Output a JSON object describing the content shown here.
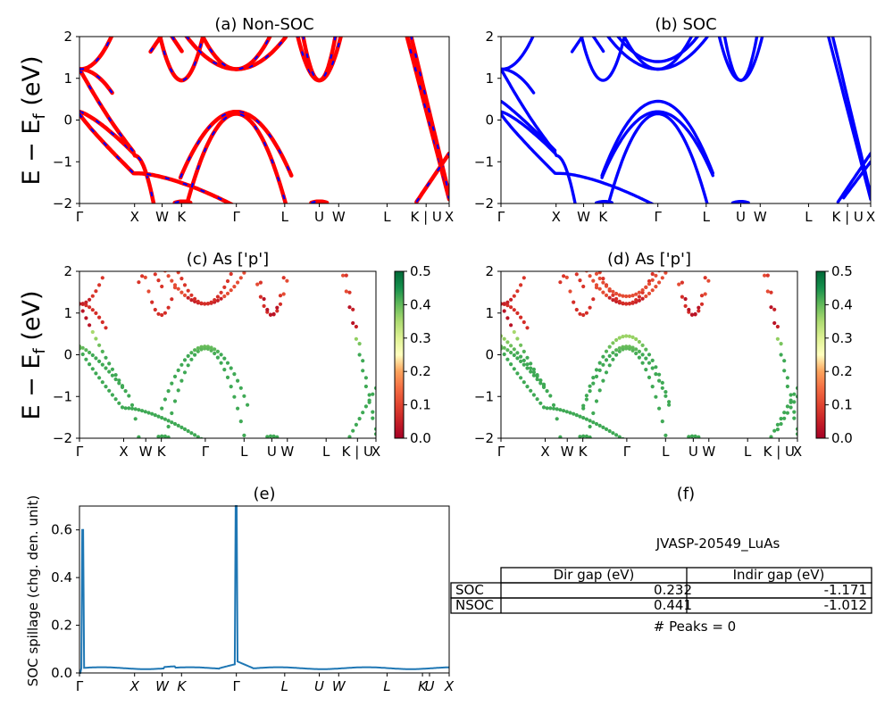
{
  "figure": {
    "ylabel_bands": "E − E",
    "ylabel_bands_sub": "f",
    "ylabel_bands_unit": " (eV)",
    "ylabel_spillage": "SOC spillage (chg. den. unit)"
  },
  "chart_data": [
    {
      "id": "a",
      "type": "line",
      "title": "(a) Non-SOC",
      "ylim": [
        -2,
        2
      ],
      "yticks": [
        "2",
        "1",
        "0",
        "−1",
        "−2"
      ],
      "xticks": [
        "Γ",
        "X",
        "W",
        "K",
        "Γ",
        "L",
        "U",
        "W",
        "L",
        "K | U",
        "X"
      ],
      "colors": {
        "band": "#ff0000",
        "overlay": "#0000ff"
      }
    },
    {
      "id": "b",
      "type": "line",
      "title": "(b) SOC",
      "ylim": [
        -2,
        2
      ],
      "yticks": [
        "2",
        "1",
        "0",
        "−1",
        "−2"
      ],
      "xticks": [
        "Γ",
        "X",
        "W",
        "K",
        "Γ",
        "L",
        "U",
        "W",
        "L",
        "K | U",
        "X"
      ],
      "colors": {
        "band": "#0000ff"
      }
    },
    {
      "id": "c",
      "type": "scatter",
      "title": "(c)  As ['p']",
      "ylim": [
        -2,
        2
      ],
      "yticks": [
        "2",
        "1",
        "0",
        "−1",
        "−2"
      ],
      "xticks": [
        "Γ",
        "X",
        "W",
        "K",
        "Γ",
        "L",
        "U",
        "W",
        "L",
        "K | U",
        "X"
      ],
      "colorbar": {
        "range": [
          0.0,
          0.5
        ],
        "ticks": [
          "0.5",
          "0.4",
          "0.3",
          "0.2",
          "0.1",
          "0.0"
        ],
        "colormap": "RdYlGn"
      }
    },
    {
      "id": "d",
      "type": "scatter",
      "title": "(d) As ['p']",
      "ylim": [
        -2,
        2
      ],
      "yticks": [
        "2",
        "1",
        "0",
        "−1",
        "−2"
      ],
      "xticks": [
        "Γ",
        "X",
        "W",
        "K",
        "Γ",
        "L",
        "U",
        "W",
        "L",
        "K | U",
        "X"
      ],
      "colorbar": {
        "range": [
          0.0,
          0.5
        ],
        "ticks": [
          "0.5",
          "0.4",
          "0.3",
          "0.2",
          "0.1",
          "0.0"
        ],
        "colormap": "RdYlGn"
      }
    },
    {
      "id": "e",
      "type": "line",
      "title": "(e)",
      "ylabel": "SOC spillage (chg. den. unit)",
      "ylim": [
        0,
        0.7
      ],
      "yticks": [
        "0.6",
        "0.4",
        "0.2",
        "0.0"
      ],
      "xticks": [
        "Γ",
        "X",
        "W",
        "K",
        "Γ",
        "L",
        "U",
        "W",
        "L",
        "K",
        "U",
        "X"
      ],
      "peaks": [
        {
          "x": "near Γ",
          "y": 0.6
        },
        {
          "x": "Γ",
          "y": 0.7
        }
      ],
      "baseline": 0.02,
      "color": "#1f77b4"
    },
    {
      "id": "f",
      "type": "table",
      "title": "(f)",
      "caption": "JVASP-20549_LuAs",
      "columns": [
        "Dir gap (eV)",
        "Indir gap (eV)"
      ],
      "rows": [
        {
          "label": "SOC",
          "values": [
            "0.232",
            "-1.171"
          ]
        },
        {
          "label": "NSOC",
          "values": [
            "0.441",
            "-1.012"
          ]
        }
      ],
      "footer": "# Peaks = 0"
    }
  ]
}
